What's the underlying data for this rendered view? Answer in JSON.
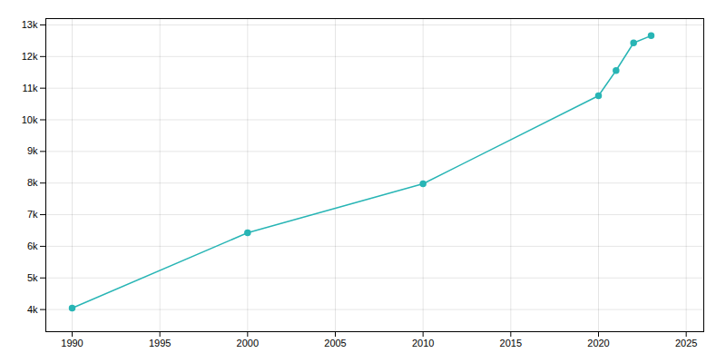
{
  "chart_data": {
    "type": "line",
    "x": [
      1990,
      2000,
      2010,
      2020,
      2021,
      2022,
      2023
    ],
    "values": [
      4045,
      6427,
      7978,
      10760,
      11557,
      12433,
      12659
    ],
    "color": "#28b5b5",
    "marker": "circle",
    "xlim": [
      1988.5,
      2026
    ],
    "xticks": [
      1990,
      1995,
      2000,
      2005,
      2010,
      2015,
      2020,
      2025
    ],
    "ylim": [
      3300,
      13200
    ],
    "yticks": [
      {
        "value": 4000,
        "label": "4k"
      },
      {
        "value": 5000,
        "label": "5k"
      },
      {
        "value": 6000,
        "label": "6k"
      },
      {
        "value": 7000,
        "label": "7k"
      },
      {
        "value": 8000,
        "label": "8k"
      },
      {
        "value": 9000,
        "label": "9k"
      },
      {
        "value": 10000,
        "label": "10k"
      },
      {
        "value": 11000,
        "label": "11k"
      },
      {
        "value": 12000,
        "label": "12k"
      },
      {
        "value": 13000,
        "label": "13k"
      }
    ],
    "grid": true
  }
}
